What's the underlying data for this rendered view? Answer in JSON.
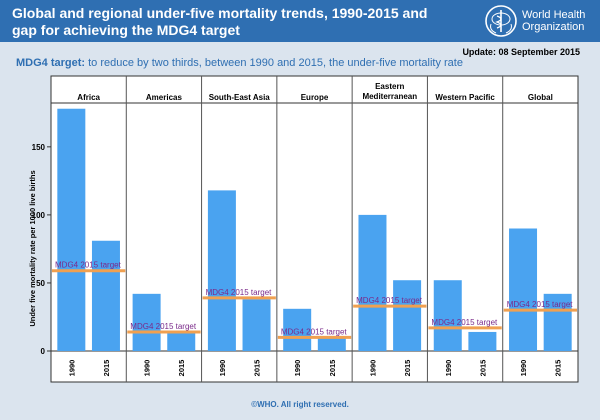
{
  "header": {
    "title": "Global and regional under-five mortality trends, 1990-2015 and gap for achieving the MDG4 target",
    "logo_line1": "World Health",
    "logo_line2": "Organization",
    "logo_icon": "who-emblem-icon"
  },
  "update": "Update: 08 September 2015",
  "target_text": {
    "lead": "MDG4 target:",
    "rest": " to reduce by two thirds, between 1990 and 2015, the under-five mortality rate"
  },
  "footer": "©WHO. All right reserved.",
  "colors": {
    "banner": "#2f6fb2",
    "bar": "#4aa3f0",
    "target_line": "#f0a050",
    "target_label": "#7a2a8a",
    "background": "#dbe4ee"
  },
  "chart_data": {
    "type": "bar",
    "ylabel": "Under five mortality rate per 1000 live births",
    "ylim": [
      0,
      180
    ],
    "yticks": [
      0,
      50,
      100,
      150
    ],
    "target_label": "MDG4 2015 target",
    "panels": [
      {
        "region": "Africa",
        "categories": [
          "1990",
          "2015"
        ],
        "values": [
          178,
          81
        ],
        "target": 59
      },
      {
        "region": "Americas",
        "categories": [
          "1990",
          "2015"
        ],
        "values": [
          42,
          15
        ],
        "target": 14
      },
      {
        "region": "South-East Asia",
        "categories": [
          "1990",
          "2015"
        ],
        "values": [
          118,
          38
        ],
        "target": 39
      },
      {
        "region": "Europe",
        "categories": [
          "1990",
          "2015"
        ],
        "values": [
          31,
          11
        ],
        "target": 10
      },
      {
        "region": "Eastern\nMediterranean",
        "categories": [
          "1990",
          "2015"
        ],
        "values": [
          100,
          52
        ],
        "target": 33
      },
      {
        "region": "Western Pacific",
        "categories": [
          "1990",
          "2015"
        ],
        "values": [
          52,
          14
        ],
        "target": 17
      },
      {
        "region": "Global",
        "categories": [
          "1990",
          "2015"
        ],
        "values": [
          90,
          42
        ],
        "target": 30
      }
    ]
  }
}
